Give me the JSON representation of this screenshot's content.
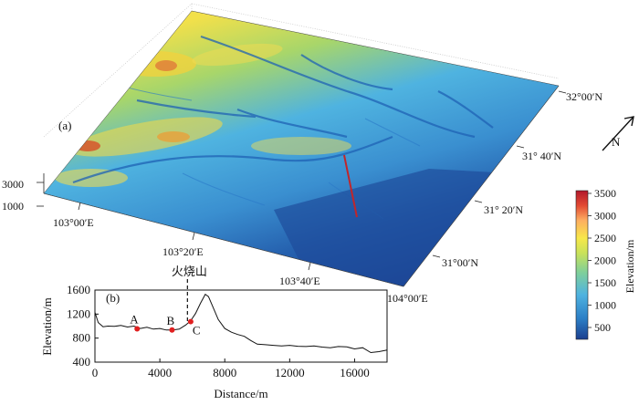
{
  "panel_a": {
    "label": "(a)",
    "z_ticks": [
      "3000",
      "1000"
    ],
    "lon_ticks": [
      "103°00′E",
      "103°20′E",
      "103°40′E",
      "104°00′E"
    ],
    "lat_ticks": [
      "32°00′N",
      "31° 40′N",
      "31° 20′N",
      "31°00′N"
    ],
    "north_label": "N",
    "colorbar": {
      "label": "Elevation/m",
      "ticks": [
        "3500",
        "3000",
        "2500",
        "2000",
        "1500",
        "1000",
        "500"
      ],
      "colors": [
        "#b2182b",
        "#e34a33",
        "#fdae61",
        "#f7e84a",
        "#9fd36a",
        "#4fb3e0",
        "#2c7fc6",
        "#1b3f8f"
      ]
    }
  },
  "chart_data": {
    "type": "line",
    "title": "",
    "panel_label": "(b)",
    "xlabel": "Distance/m",
    "ylabel": "Elevation/m",
    "xlim": [
      0,
      18000
    ],
    "ylim": [
      400,
      1600
    ],
    "x_ticks": [
      "0",
      "4000",
      "8000",
      "12000",
      "16000"
    ],
    "y_ticks": [
      "400",
      "800",
      "1200",
      "1600"
    ],
    "x": [
      0,
      200,
      500,
      800,
      1200,
      1600,
      2000,
      2400,
      2800,
      3200,
      3600,
      4000,
      4400,
      4800,
      5200,
      5600,
      5900,
      6200,
      6500,
      6800,
      7000,
      7300,
      7600,
      8000,
      8400,
      8800,
      9200,
      9600,
      10000,
      10500,
      11000,
      11500,
      12000,
      12500,
      13000,
      13500,
      14000,
      14500,
      15000,
      15500,
      16000,
      16500,
      17000,
      17500,
      18000
    ],
    "y": [
      1230,
      1060,
      990,
      1000,
      995,
      1010,
      985,
      1000,
      960,
      980,
      950,
      960,
      935,
      935,
      950,
      1020,
      1090,
      1210,
      1380,
      1530,
      1490,
      1300,
      1110,
      960,
      900,
      860,
      830,
      760,
      700,
      690,
      680,
      670,
      680,
      665,
      660,
      670,
      650,
      640,
      660,
      655,
      620,
      640,
      560,
      575,
      600
    ],
    "points": [
      {
        "label": "A",
        "x": 2600,
        "y": 955
      },
      {
        "label": "B",
        "x": 4750,
        "y": 935
      },
      {
        "label": "C",
        "x": 5900,
        "y": 1075
      }
    ],
    "annotation": {
      "text": "火烧山",
      "x": 5700
    }
  }
}
